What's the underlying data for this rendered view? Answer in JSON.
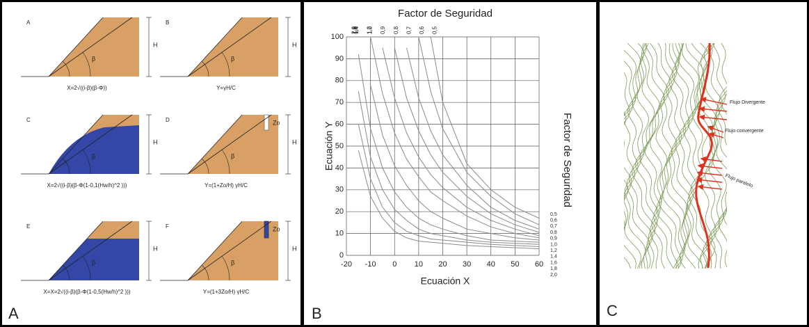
{
  "panel_a": {
    "label": "A",
    "diagrams": [
      {
        "letter": "A",
        "height_label": "H",
        "angle_label": "β",
        "formula": "X=2√((i-β)(β-Φ))"
      },
      {
        "letter": "B",
        "height_label": "H",
        "angle_label": "β",
        "formula": "Y=γH/C"
      },
      {
        "letter": "C",
        "height_label": "H",
        "angle_label": "β",
        "formula": "X=2√((i-β)(β-Φ(1-0,1(Hw/h)^2 )))"
      },
      {
        "letter": "D",
        "height_label": "H",
        "angle_label": "β",
        "zo_label": "Zo",
        "formula": "Y=(1+Zo/H) γH/C"
      },
      {
        "letter": "E",
        "height_label": "H",
        "angle_label": "β",
        "formula": "X=X=2√((i-β)(β-Φ(1-0,5(Hw/h)^2 )))"
      },
      {
        "letter": "F",
        "height_label": "H",
        "angle_label": "β",
        "zo_label": "Zo",
        "formula": "Y=(1+3Zo/H) γH/C"
      }
    ]
  },
  "chart_data": {
    "type": "line",
    "title": "Factor de Seguridad",
    "x_label": "Ecuación X",
    "y_label": "Ecuación Y",
    "right_label": "Factor de Seguridad",
    "panel_label": "B",
    "x": [
      -20,
      -15,
      -10,
      -5,
      0,
      5,
      10,
      15,
      20,
      30,
      40,
      50,
      60
    ],
    "xlim": [
      -20,
      60
    ],
    "ylim": [
      0,
      100
    ],
    "xticks": [
      -20,
      -10,
      0,
      10,
      20,
      30,
      40,
      50,
      60
    ],
    "yticks": [
      0,
      10,
      20,
      30,
      40,
      50,
      60,
      70,
      80,
      90,
      100
    ],
    "grid": true,
    "series": [
      {
        "name": "2,0",
        "color": "#8a8a8a",
        "values": [
          null,
          48,
          27,
          17,
          11,
          8,
          6.5,
          6,
          5.5,
          4.5,
          4,
          3.5,
          3
        ]
      },
      {
        "name": "1,8",
        "color": "#8a8a8a",
        "values": [
          null,
          60,
          35,
          22,
          15,
          11,
          9,
          7.5,
          7,
          6,
          5,
          4.5,
          4
        ]
      },
      {
        "name": "1,6",
        "color": "#8a8a8a",
        "values": [
          null,
          75,
          45,
          30,
          21,
          16,
          12,
          10,
          9,
          7,
          6,
          5.5,
          5
        ]
      },
      {
        "name": "1,4",
        "color": "#8a8a8a",
        "values": [
          null,
          92,
          58,
          40,
          29,
          22,
          17,
          14,
          12,
          9,
          7,
          6.5,
          6
        ]
      },
      {
        "name": "1,2",
        "color": "#8a8a8a",
        "values": [
          null,
          null,
          78,
          55,
          41,
          32,
          25,
          20,
          17,
          12,
          10,
          8,
          7
        ]
      },
      {
        "name": "1,0",
        "color": "#8a8a8a",
        "values": [
          null,
          null,
          100,
          74,
          56,
          44,
          36,
          29,
          25,
          18,
          13,
          10,
          8
        ]
      },
      {
        "name": "0,9",
        "color": "#8a8a8a",
        "values": [
          null,
          null,
          null,
          95,
          72,
          56,
          45,
          37,
          31,
          22,
          16,
          12,
          9
        ]
      },
      {
        "name": "0,8",
        "color": "#8a8a8a",
        "values": [
          null,
          null,
          null,
          null,
          95,
          72,
          57,
          46,
          38,
          27,
          19,
          14,
          10.5
        ]
      },
      {
        "name": "0,7",
        "color": "#8a8a8a",
        "values": [
          null,
          null,
          null,
          null,
          null,
          95,
          72,
          57,
          46,
          32,
          22,
          16,
          12
        ]
      },
      {
        "name": "0,6",
        "color": "#8a8a8a",
        "values": [
          null,
          null,
          null,
          null,
          null,
          null,
          100,
          75,
          58,
          38,
          27,
          19,
          14
        ]
      },
      {
        "name": "0,5",
        "color": "#8a8a8a",
        "values": [
          null,
          null,
          null,
          null,
          null,
          null,
          null,
          100,
          70,
          42,
          30,
          22,
          17
        ]
      }
    ]
  },
  "panel_c": {
    "label": "C",
    "annotations": [
      "Flujo Divergente",
      "Flujo convergente",
      "Flujo paralelo"
    ]
  }
}
